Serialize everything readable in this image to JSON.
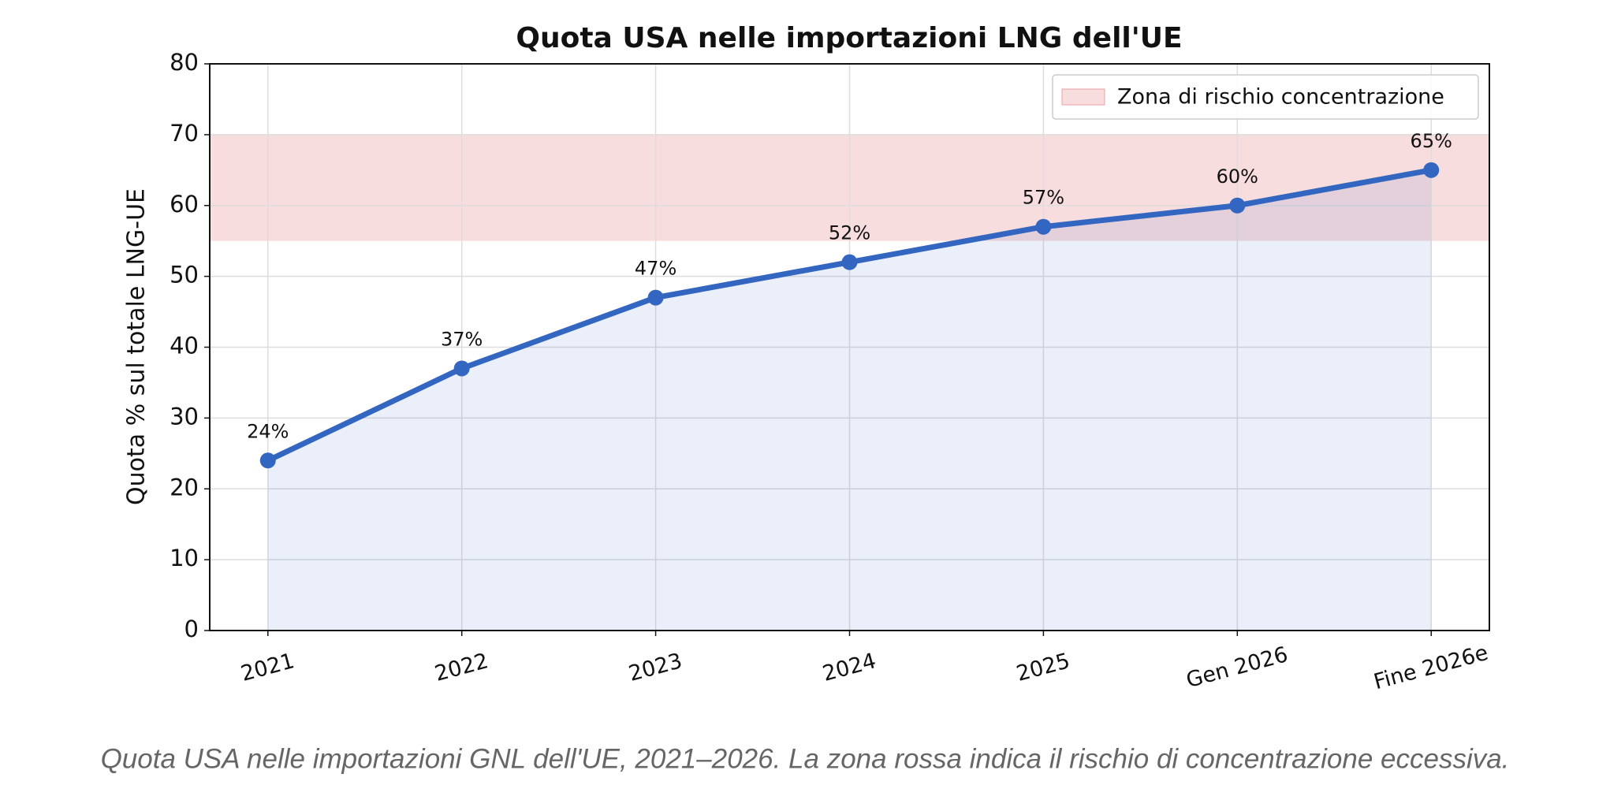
{
  "chart_data": {
    "type": "line",
    "title": "Quota USA nelle importazioni LNG dell'UE",
    "y_label": "Quota % sul totale LNG-UE",
    "categories": [
      "2021",
      "2022",
      "2023",
      "2024",
      "2025",
      "Gen 2026",
      "Fine 2026e"
    ],
    "series": [
      {
        "name": "Quota USA",
        "color": "#3366c0",
        "values": [
          24,
          37,
          47,
          52,
          57,
          60,
          65
        ],
        "value_labels": [
          "24%",
          "37%",
          "47%",
          "52%",
          "57%",
          "60%",
          "65%"
        ]
      }
    ],
    "bands": [
      {
        "name": "Zona di rischio concentrazione",
        "range": [
          55,
          70
        ],
        "color": "#f4c6c8"
      }
    ],
    "ylim": [
      0,
      80
    ],
    "yticks": [
      0,
      10,
      20,
      30,
      40,
      50,
      60,
      70,
      80
    ],
    "grid": true,
    "legend": "upper right"
  },
  "caption": "Quota USA nelle importazioni GNL dell'UE, 2021–2026. La zona rossa indica il rischio di concentrazione eccessiva."
}
